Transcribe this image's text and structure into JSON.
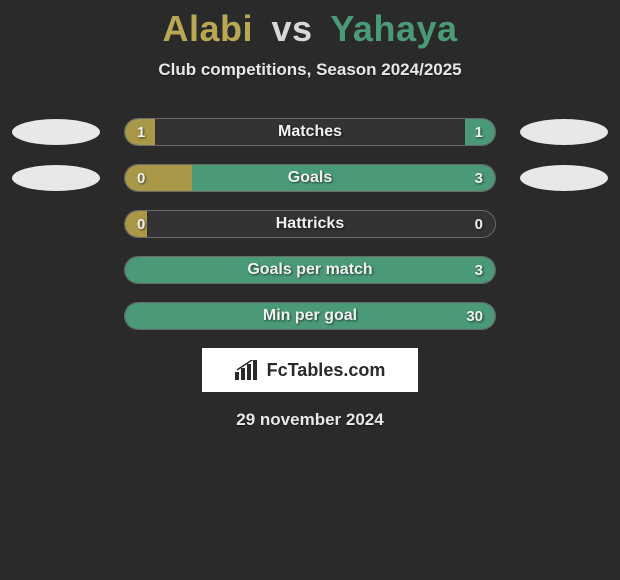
{
  "title": {
    "player1": "Alabi",
    "vs": "vs",
    "player2": "Yahaya",
    "player1_color": "#b8a854",
    "player2_color": "#4a9a78",
    "vs_color": "#d8d8d8",
    "fontsize": 36
  },
  "subtitle": "Club competitions, Season 2024/2025",
  "subtitle_fontsize": 17,
  "date": "29 november 2024",
  "brand": "FcTables.com",
  "background_color": "#2a2a2a",
  "bar_bg_color": "#333333",
  "bar_border_color": "#6a6a6a",
  "left_fill_color": "#a89848",
  "right_fill_color": "#4a9a78",
  "oval_color": "#e8e8e8",
  "stats": [
    {
      "label": "Matches",
      "left_val": "1",
      "right_val": "1",
      "left_pct": 8,
      "right_pct": 8,
      "show_ovals": true
    },
    {
      "label": "Goals",
      "left_val": "0",
      "right_val": "3",
      "left_pct": 18,
      "right_pct": 82,
      "show_ovals": true
    },
    {
      "label": "Hattricks",
      "left_val": "0",
      "right_val": "0",
      "left_pct": 6,
      "right_pct": 0,
      "show_ovals": false
    },
    {
      "label": "Goals per match",
      "left_val": "",
      "right_val": "3",
      "left_pct": 0,
      "right_pct": 100,
      "show_ovals": false
    },
    {
      "label": "Min per goal",
      "left_val": "",
      "right_val": "30",
      "left_pct": 0,
      "right_pct": 100,
      "show_ovals": false
    }
  ]
}
